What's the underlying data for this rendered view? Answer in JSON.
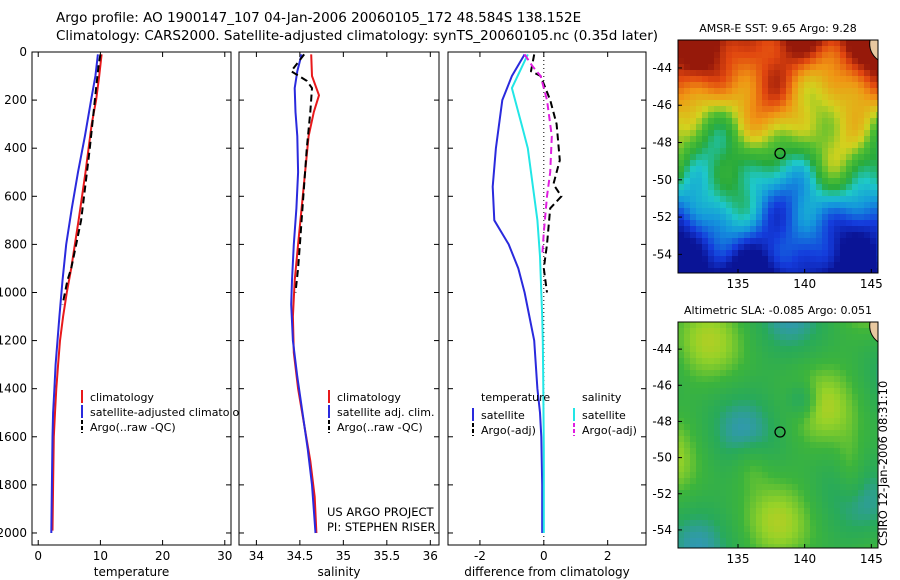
{
  "header": {
    "line1": "Argo profile: AO 1900147_107 04-Jan-2006 20060105_172 48.584S 138.152E",
    "line2": "Climatology: CARS2000. Satellite-adjusted climatology: synTS_20060105.nc (0.35d later)"
  },
  "side_label": "CSIRO 12-Jan-2006 08:31:10",
  "notes": {
    "project": "US ARGO PROJECT",
    "pi": "PI: STEPHEN RISER"
  },
  "colors": {
    "red": "#e8191b",
    "blue": "#2a2add",
    "black": "#000000",
    "cyan": "#22e6e6",
    "magenta": "#e01ee0"
  },
  "chart_data": [
    {
      "type": "line",
      "id": "temperature",
      "xlabel": "temperature",
      "ylabel": "",
      "xlim": [
        -1,
        31
      ],
      "ylim": [
        2050,
        0
      ],
      "xticks": [
        0,
        10,
        20,
        30
      ],
      "yticks": [
        0,
        200,
        400,
        600,
        800,
        1000,
        1200,
        1400,
        1600,
        1800,
        2000
      ],
      "legend": [
        "climatology",
        "satellite-adjusted climatology",
        "Argo(..raw -QC)"
      ],
      "series": [
        {
          "name": "climatology",
          "color": "red",
          "dash": "solid",
          "x": [
            10.2,
            9.8,
            9.3,
            8.6,
            7.6,
            6.5,
            5.3,
            4.6,
            4.0,
            3.5,
            3.2,
            2.9,
            2.7,
            2.5,
            2.4,
            2.3
          ],
          "y": [
            10,
            100,
            200,
            300,
            500,
            700,
            900,
            1000,
            1100,
            1200,
            1300,
            1400,
            1500,
            1600,
            1800,
            1990
          ]
        },
        {
          "name": "satellite-adjusted climatology",
          "color": "blue",
          "dash": "solid",
          "x": [
            9.6,
            9.2,
            8.5,
            7.5,
            6.4,
            5.4,
            4.5,
            3.9,
            3.4,
            3.1,
            2.8,
            2.6,
            2.4,
            2.3,
            2.2,
            2.1
          ],
          "y": [
            10,
            100,
            200,
            350,
            500,
            650,
            800,
            950,
            1100,
            1200,
            1300,
            1400,
            1500,
            1600,
            1800,
            2000
          ]
        },
        {
          "name": "Argo(..raw -QC)",
          "color": "black",
          "dash": "dashed",
          "x": [
            10.0,
            9.7,
            9.3,
            8.9,
            8.3,
            7.6,
            6.9,
            6.1,
            5.3,
            4.7,
            4.3,
            3.9
          ],
          "y": [
            10,
            60,
            150,
            250,
            400,
            550,
            700,
            800,
            900,
            950,
            1000,
            1050
          ]
        }
      ]
    },
    {
      "type": "line",
      "id": "salinity",
      "xlabel": "salinity",
      "ylabel": "",
      "xlim": [
        33.8,
        36.1
      ],
      "ylim": [
        2050,
        0
      ],
      "xticks": [
        34,
        34.5,
        35,
        35.5,
        36
      ],
      "yticks": [
        0,
        200,
        400,
        600,
        800,
        1000,
        1200,
        1400,
        1600,
        1800,
        2000
      ],
      "legend": [
        "climatology",
        "satellite adj. clim.",
        "Argo(..raw -QC)"
      ],
      "series": [
        {
          "name": "climatology",
          "color": "red",
          "dash": "solid",
          "x": [
            34.63,
            34.64,
            34.72,
            34.66,
            34.6,
            34.56,
            34.52,
            34.48,
            34.44,
            34.42,
            34.43,
            34.48,
            34.55,
            34.62,
            34.67,
            34.69
          ],
          "y": [
            10,
            100,
            180,
            250,
            350,
            500,
            650,
            800,
            950,
            1100,
            1250,
            1400,
            1550,
            1700,
            1850,
            2000
          ]
        },
        {
          "name": "satellite adj. clim.",
          "color": "blue",
          "dash": "solid",
          "x": [
            34.52,
            34.47,
            34.44,
            34.45,
            34.47,
            34.48,
            34.46,
            34.43,
            34.41,
            34.4,
            34.42,
            34.47,
            34.53,
            34.59,
            34.64,
            34.68
          ],
          "y": [
            10,
            80,
            150,
            250,
            350,
            500,
            650,
            800,
            950,
            1050,
            1200,
            1350,
            1500,
            1650,
            1800,
            2000
          ]
        },
        {
          "name": "Argo(..raw -QC)",
          "color": "black",
          "dash": "dashed",
          "x": [
            34.55,
            34.4,
            34.58,
            34.64,
            34.62,
            34.58,
            34.55,
            34.52,
            34.5,
            34.48,
            34.45
          ],
          "y": [
            10,
            80,
            120,
            150,
            250,
            400,
            550,
            700,
            800,
            900,
            1000
          ]
        }
      ]
    },
    {
      "type": "line",
      "id": "difference",
      "xlabel": "difference from climatology",
      "ylabel": "",
      "xlim": [
        -3,
        3.2
      ],
      "ylim": [
        2050,
        0
      ],
      "xticks": [
        -2,
        0,
        2
      ],
      "yticks": [
        0,
        200,
        400,
        600,
        800,
        1000,
        1200,
        1400,
        1600,
        1800,
        2000
      ],
      "zero_line": true,
      "legend_groups": {
        "left": "temperature",
        "right": "salinity"
      },
      "legend": [
        "satellite",
        "Argo(-adj)",
        "satellite",
        "Argo(-adj)"
      ],
      "series": [
        {
          "name": "satellite",
          "group": "temperature",
          "color": "blue",
          "dash": "solid",
          "x": [
            -0.6,
            -1.0,
            -1.3,
            -1.5,
            -1.6,
            -1.55,
            -1.1,
            -0.8,
            -0.6,
            -0.45,
            -0.3,
            -0.2,
            -0.12,
            -0.08,
            -0.05,
            -0.05
          ],
          "y": [
            10,
            100,
            200,
            400,
            560,
            700,
            800,
            900,
            1000,
            1100,
            1200,
            1400,
            1500,
            1600,
            1800,
            2000
          ]
        },
        {
          "name": "Argo(-adj)",
          "group": "temperature",
          "color": "black",
          "dash": "dashed",
          "x": [
            -0.3,
            -0.4,
            -0.1,
            0.2,
            0.4,
            0.5,
            0.3,
            0.55,
            0.2,
            0.1,
            0.0,
            0.1
          ],
          "y": [
            10,
            80,
            100,
            200,
            300,
            450,
            550,
            600,
            650,
            800,
            900,
            1000
          ]
        },
        {
          "name": "satellite",
          "group": "salinity",
          "color": "cyan",
          "dash": "solid",
          "x": [
            -0.5,
            -1.0,
            -0.9,
            -0.7,
            -0.5,
            -0.35,
            -0.2,
            -0.12,
            -0.08,
            -0.05,
            -0.03,
            -0.02,
            -0.01,
            0.0,
            0.0,
            0.0
          ],
          "y": [
            10,
            150,
            200,
            300,
            400,
            550,
            700,
            850,
            1000,
            1100,
            1200,
            1350,
            1500,
            1650,
            1800,
            2000
          ]
        },
        {
          "name": "Argo(-adj)",
          "group": "salinity",
          "color": "magenta",
          "dash": "dashed",
          "x": [
            -0.6,
            -0.35,
            -0.1,
            0.1,
            0.25,
            0.2,
            0.1,
            0.0,
            -0.05
          ],
          "y": [
            10,
            60,
            100,
            200,
            350,
            500,
            600,
            750,
            850
          ]
        }
      ]
    },
    {
      "type": "heatmap",
      "id": "sst-map",
      "title": "AMSR-E SST: 9.65 Argo: 9.28",
      "xlim": [
        130.5,
        145.5
      ],
      "ylim": [
        -55,
        -42.5
      ],
      "xticks": [
        135,
        140,
        145
      ],
      "yticks": [
        -44,
        -46,
        -48,
        -50,
        -52,
        -54
      ],
      "marker": {
        "lon": 138.152,
        "lat": -48.584
      }
    },
    {
      "type": "heatmap",
      "id": "sla-map",
      "title": "Altimetric SLA: -0.085 Argo: 0.051",
      "xlim": [
        130.5,
        145.5
      ],
      "ylim": [
        -55,
        -42.5
      ],
      "xticks": [
        135,
        140,
        145
      ],
      "yticks": [
        -44,
        -46,
        -48,
        -50,
        -52,
        -54
      ],
      "marker": {
        "lon": 138.152,
        "lat": -48.584
      }
    }
  ]
}
